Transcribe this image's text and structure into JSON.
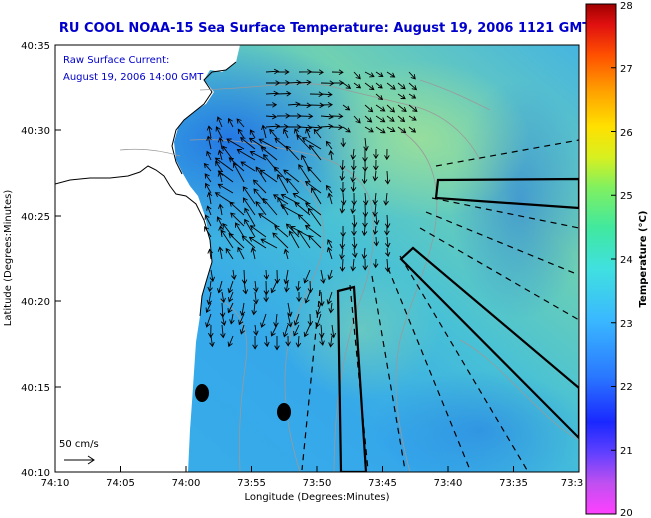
{
  "title": "RU COOL  NOAA-15  Sea Surface Temperature:  August 19, 2006 1121 GMT",
  "annotation": {
    "line1": "Raw Surface Current:",
    "line2": "August 19, 2006 14:00 GMT"
  },
  "axes": {
    "ylabel": "Latitude (Degrees:Minutes)",
    "xlabel": "Longitude (Degrees:Minutes)",
    "yticks": [
      "40:35",
      "40:30",
      "40:25",
      "40:20",
      "40:15",
      "40:10"
    ],
    "xticks": [
      "74:10",
      "74:05",
      "74:00",
      "73:55",
      "73:50",
      "73:45",
      "73:40",
      "73:35",
      "73:3"
    ]
  },
  "scale": {
    "label": "50 cm/s"
  },
  "colorbar": {
    "label": "Temperature (°C)",
    "min": 20,
    "max": 28,
    "ticks": [
      "28",
      "27",
      "26",
      "25",
      "24",
      "23",
      "22",
      "21",
      "20"
    ]
  },
  "colors": {
    "title": "#0000cc",
    "annotation": "#0000cc",
    "land": "#ffffff",
    "coastline": "#000000",
    "bathymetry": "#9a9a9a",
    "vectors": "#000000"
  }
}
